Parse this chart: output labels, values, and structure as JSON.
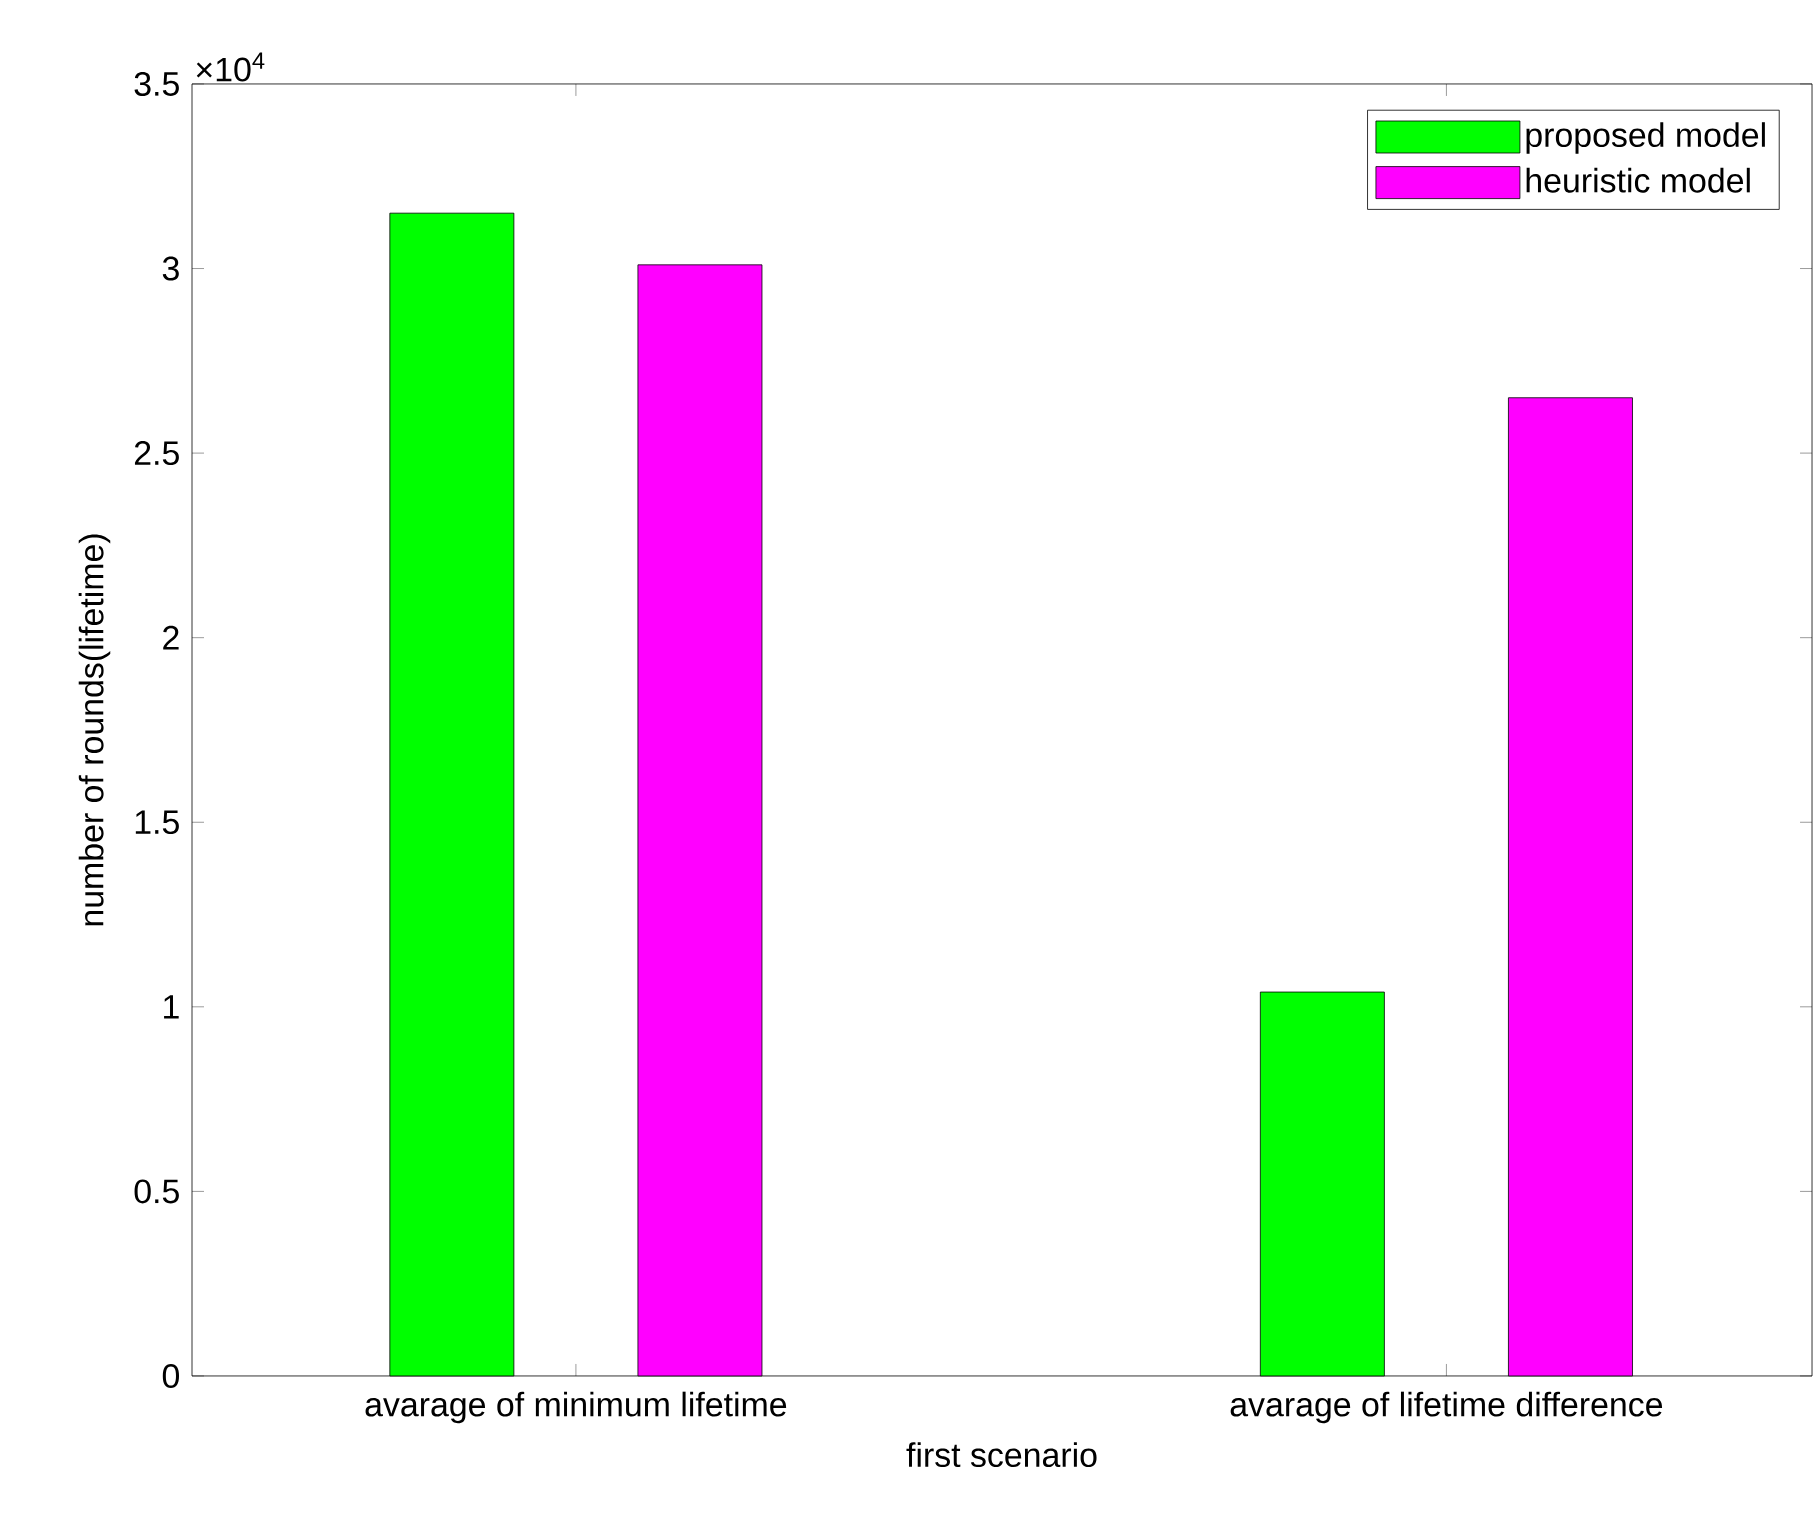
{
  "chart_data": {
    "type": "bar",
    "xlabel": "first scenario",
    "ylabel": "number of rounds(lifetime)",
    "categories": [
      "avarage of minimum lifetime",
      "avarage of lifetime difference"
    ],
    "series": [
      {
        "name": "proposed model",
        "color": "#00ff00",
        "values": [
          3.15,
          1.04
        ]
      },
      {
        "name": "heuristic model",
        "color": "#ff00ff",
        "values": [
          3.01,
          2.65
        ]
      }
    ],
    "ylim": [
      0,
      3.5
    ],
    "yticks": [
      0,
      0.5,
      1,
      1.5,
      2,
      2.5,
      3,
      3.5
    ],
    "legend": "top right",
    "annotations": [
      "×10$^{4}$"
    ]
  }
}
